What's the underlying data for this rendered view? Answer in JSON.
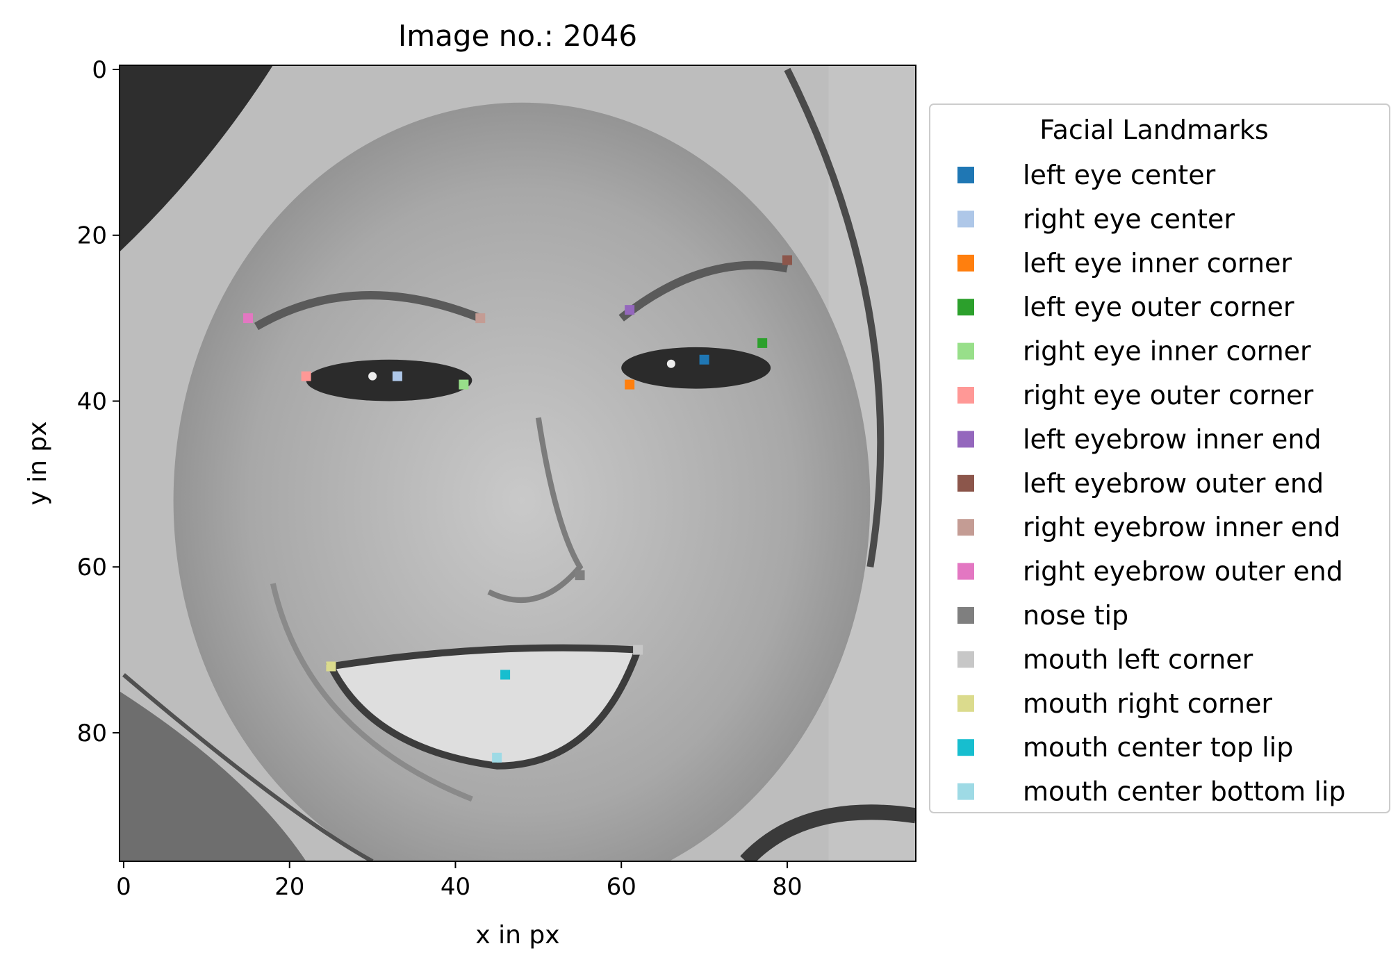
{
  "chart_data": {
    "type": "scatter",
    "title": "Image no.: 2046",
    "xlabel": "x in px",
    "ylabel": "y in px",
    "xlim": [
      -0.5,
      95.5
    ],
    "ylim": [
      95.5,
      -0.5
    ],
    "x_ticks": [
      0,
      20,
      40,
      60,
      80
    ],
    "y_ticks": [
      0,
      20,
      40,
      60,
      80
    ],
    "grid": false,
    "background": "grayscale face photograph (96x96)",
    "legend": {
      "title": "Facial Landmarks",
      "placement": "outside-right"
    },
    "series": [
      {
        "name": "left eye center",
        "color": "#1f77b4",
        "x": 70,
        "y": 35
      },
      {
        "name": "right eye center",
        "color": "#aec7e8",
        "x": 33,
        "y": 37
      },
      {
        "name": "left eye inner corner",
        "color": "#ff7f0e",
        "x": 61,
        "y": 38
      },
      {
        "name": "left eye outer corner",
        "color": "#2ca02c",
        "x": 77,
        "y": 33
      },
      {
        "name": "right eye inner corner",
        "color": "#98df8a",
        "x": 41,
        "y": 38
      },
      {
        "name": "right eye outer corner",
        "color": "#ff9896",
        "x": 22,
        "y": 37
      },
      {
        "name": "left eyebrow inner end",
        "color": "#9467bd",
        "x": 61,
        "y": 29
      },
      {
        "name": "left eyebrow outer end",
        "color": "#8c564b",
        "x": 80,
        "y": 23
      },
      {
        "name": "right eyebrow inner end",
        "color": "#c49c94",
        "x": 43,
        "y": 30
      },
      {
        "name": "right eyebrow outer end",
        "color": "#e377c2",
        "x": 15,
        "y": 30
      },
      {
        "name": "nose tip",
        "color": "#7f7f7f",
        "x": 55,
        "y": 61
      },
      {
        "name": "mouth left corner",
        "color": "#c7c7c7",
        "x": 62,
        "y": 70
      },
      {
        "name": "mouth right corner",
        "color": "#dbdb8d",
        "x": 25,
        "y": 72
      },
      {
        "name": "mouth center top lip",
        "color": "#17becf",
        "x": 46,
        "y": 73
      },
      {
        "name": "mouth center bottom lip",
        "color": "#9edae5",
        "x": 45,
        "y": 83
      }
    ]
  }
}
